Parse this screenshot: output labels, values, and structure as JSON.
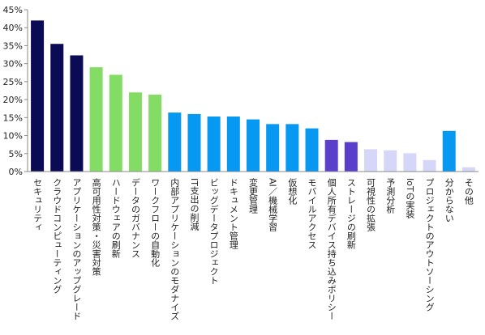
{
  "chart_data": {
    "type": "bar",
    "ylim": [
      0,
      45
    ],
    "yticks": [
      "0%",
      "5%",
      "10%",
      "15%",
      "20%",
      "25%",
      "30%",
      "35%",
      "40%",
      "45%"
    ],
    "grid": false,
    "categories": [
      "セキュリティ",
      "クラウドコンピューティング",
      "アプリケーションのアップグレード",
      "高可用性対策・災害対策",
      "ハードウェアの刷新",
      "データのガバナンス",
      "ワークフローの自動化",
      "内部アプリケーションのモダナイズ",
      "IT支出の削減",
      "ビッグデータプロジェクト",
      "ドキュメント管理",
      "変更管理",
      "AI／機械学習",
      "仮想化",
      "モバイルアクセス",
      "個人所有デバイス持ち込みポリシー",
      "ストレージの刷新",
      "可視性の拡張",
      "予測分析",
      "IoTの実装",
      "プロジェクトのアウトソーシング",
      "分からない",
      "その他"
    ],
    "values": [
      42,
      35.5,
      32.3,
      29,
      26.9,
      22,
      21.4,
      16.4,
      16,
      15.3,
      15.3,
      14.5,
      13.2,
      13.2,
      12,
      8.8,
      8.2,
      6.2,
      5.9,
      5.1,
      3.2,
      11.3,
      1.2
    ],
    "colors": [
      "#0b0a54",
      "#0b0a54",
      "#0b0a54",
      "#83dc63",
      "#83dc63",
      "#83dc63",
      "#83dc63",
      "#0799f2",
      "#0799f2",
      "#0799f2",
      "#0799f2",
      "#0799f2",
      "#0799f2",
      "#0799f2",
      "#0799f2",
      "#5a3fcc",
      "#5a3fcc",
      "#d6d6f8",
      "#d6d6f8",
      "#d6d6f8",
      "#d6d6f8",
      "#0799f2",
      "#d6d6f8"
    ]
  }
}
